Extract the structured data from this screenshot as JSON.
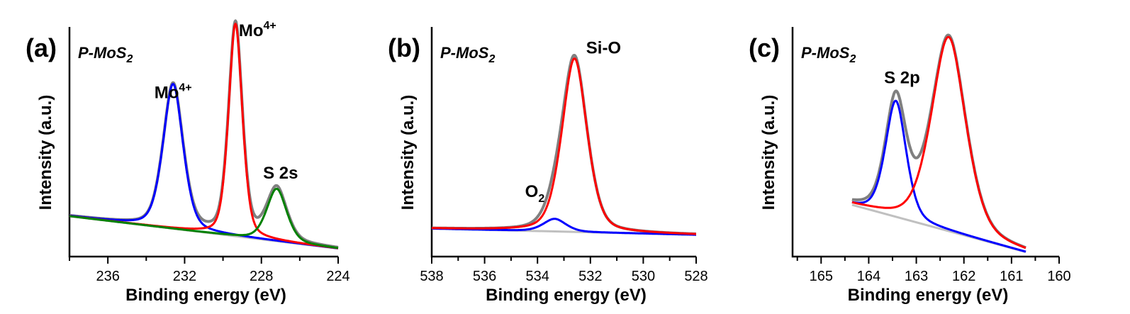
{
  "chart_data": [
    {
      "type": "line",
      "panel_label": "(a)",
      "sample_label": "P-MoS",
      "sample_sub": "2",
      "xlabel": "Binding energy (eV)",
      "ylabel": "Intensity (a.u.)",
      "xlim": [
        238,
        224
      ],
      "x_reversed": true,
      "xticks": [
        236,
        232,
        228,
        224
      ],
      "xtick_labels": [
        "236",
        "232",
        "228",
        "224"
      ],
      "ylim": [
        0,
        1
      ],
      "baseline": [
        [
          238,
          0.176
        ],
        [
          224,
          0.035
        ]
      ],
      "peaks": [
        {
          "color": "#0000ff",
          "center": 232.6,
          "height": 0.63,
          "width": 0.55
        },
        {
          "color": "#ff0000",
          "center": 229.35,
          "height": 0.925,
          "width": 0.38
        },
        {
          "color": "#008000",
          "center": 227.2,
          "height": 0.228,
          "width": 0.55
        }
      ],
      "envelope_color": "#808080",
      "baseline_color": "#c0c0c0",
      "annotations": [
        {
          "text": "Mo",
          "sup": "4+",
          "x": 232.6,
          "y": 0.69
        },
        {
          "text": "Mo",
          "sup": "4+",
          "x": 228.2,
          "y": 0.96
        },
        {
          "text": "S 2s",
          "x": 227.0,
          "y": 0.34
        }
      ]
    },
    {
      "type": "line",
      "panel_label": "(b)",
      "sample_label": "P-MoS",
      "sample_sub": "2",
      "xlabel": "Binding energy (eV)",
      "ylabel": "Intensity (a.u.)",
      "xlim": [
        538,
        528
      ],
      "x_reversed": true,
      "xticks": [
        538,
        536,
        534,
        532,
        530,
        528
      ],
      "xtick_labels": [
        "538",
        "536",
        "534",
        "532",
        "530",
        "528"
      ],
      "ylim": [
        0,
        1
      ],
      "baseline": [
        [
          538,
          0.122
        ],
        [
          528,
          0.095
        ]
      ],
      "peaks": [
        {
          "color": "#0000ff",
          "center": 533.35,
          "height": 0.055,
          "width": 0.45
        },
        {
          "color": "#ff0000",
          "center": 532.6,
          "height": 0.755,
          "width": 0.5
        }
      ],
      "envelope_color": "#808080",
      "baseline_color": "#c0c0c0",
      "annotations": [
        {
          "text": "O",
          "sub": "2",
          "x": 534.1,
          "y": 0.26
        },
        {
          "text": "Si-O",
          "x": 531.5,
          "y": 0.885
        }
      ]
    },
    {
      "type": "line",
      "panel_label": "(c)",
      "sample_label": "P-MoS",
      "sample_sub": "2",
      "xlabel": "Binding energy (eV)",
      "ylabel": "Intensity (a.u.)",
      "xlim": [
        165.6,
        160
      ],
      "x_reversed": true,
      "xticks": [
        165,
        164,
        163,
        162,
        161,
        160
      ],
      "xtick_labels": [
        "165",
        "164",
        "163",
        "162",
        "161",
        "160"
      ],
      "ylim": [
        0,
        1
      ],
      "xrange": [
        164.35,
        160.7
      ],
      "baseline": [
        [
          164.35,
          0.225
        ],
        [
          160.7,
          0.02
        ]
      ],
      "peaks": [
        {
          "color": "#0000ff",
          "center": 163.43,
          "height": 0.505,
          "width": 0.23
        },
        {
          "color": "#ff0000",
          "center": 162.32,
          "height": 0.845,
          "width": 0.38
        }
      ],
      "envelope_color": "#808080",
      "baseline_color": "#c0c0c0",
      "annotations": [
        {
          "text": "S 2p",
          "x": 163.3,
          "y": 0.755
        }
      ]
    }
  ]
}
